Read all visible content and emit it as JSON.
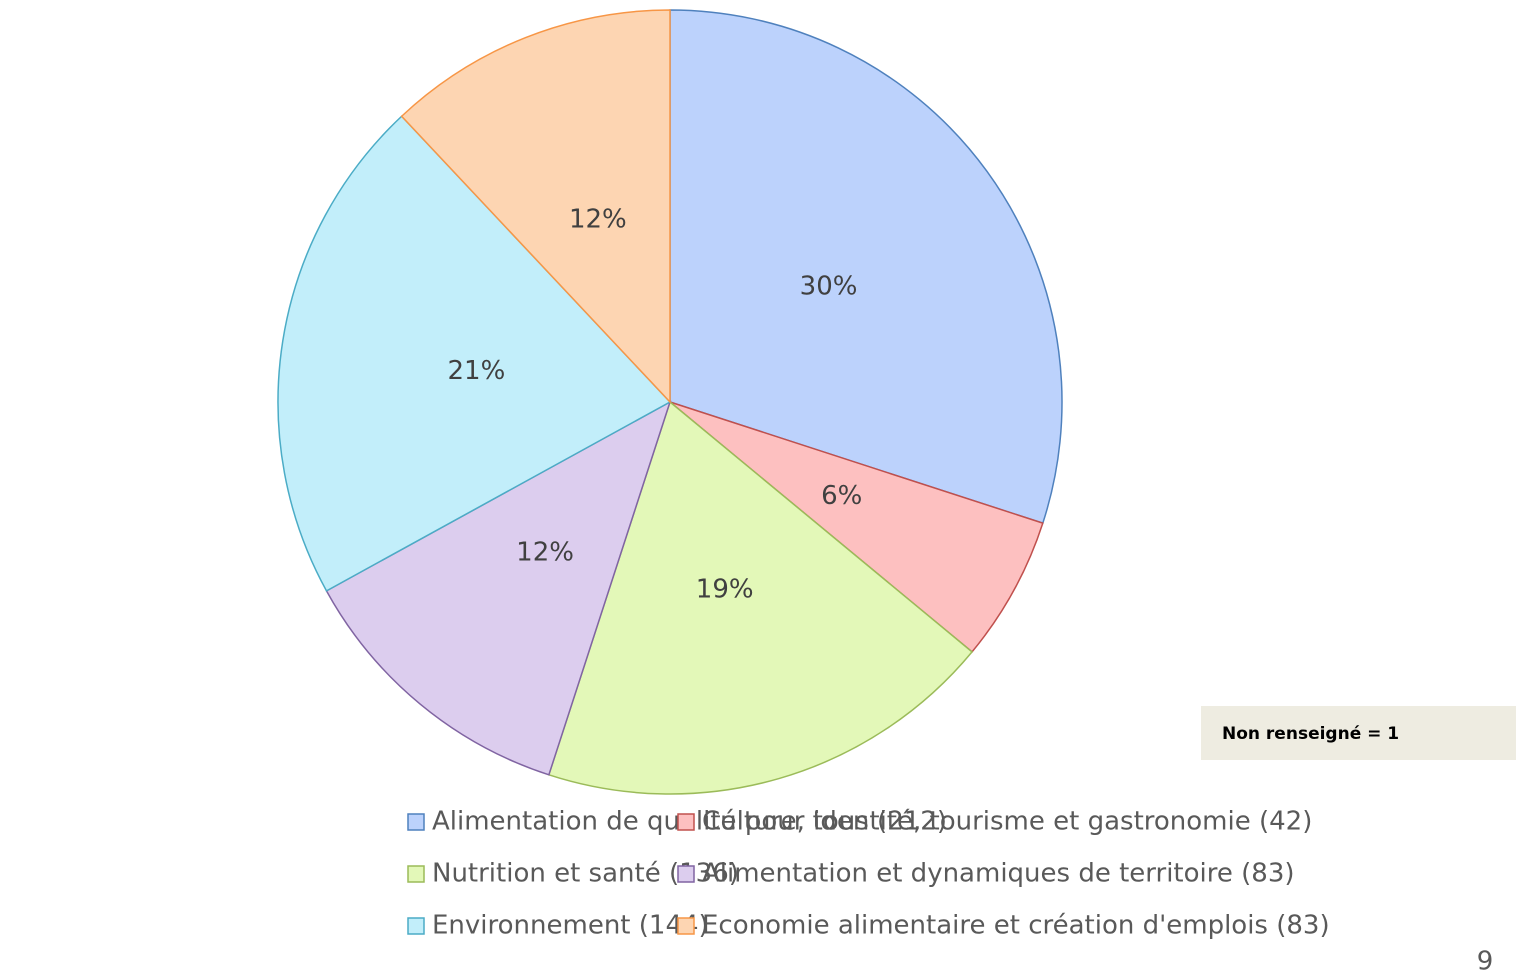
{
  "chart_data": {
    "type": "pie",
    "categories": [
      "Alimentation de qualité pour tous (212)",
      "Culture, identité, tourisme et gastronomie (42)",
      "Nutrition et santé (136)",
      "Alimentation et dynamiques de territoire (83)",
      "Environnement (144)",
      "Economie alimentaire et création d'emplois (83)"
    ],
    "values": [
      30,
      6,
      19,
      12,
      21,
      12
    ],
    "value_labels": [
      "30%",
      "6%",
      "19%",
      "12%",
      "21%",
      "12%"
    ],
    "colors": [
      "#bcd2fc",
      "#fdc0c0",
      "#e3f8b8",
      "#dccdee",
      "#c2eefa",
      "#fdd5b2"
    ],
    "strokes": [
      "#4f81bd",
      "#c0504d",
      "#9bbb59",
      "#8064a2",
      "#4bacc6",
      "#f79646"
    ],
    "note": "Non renseigné = 1"
  },
  "page_number": "9"
}
